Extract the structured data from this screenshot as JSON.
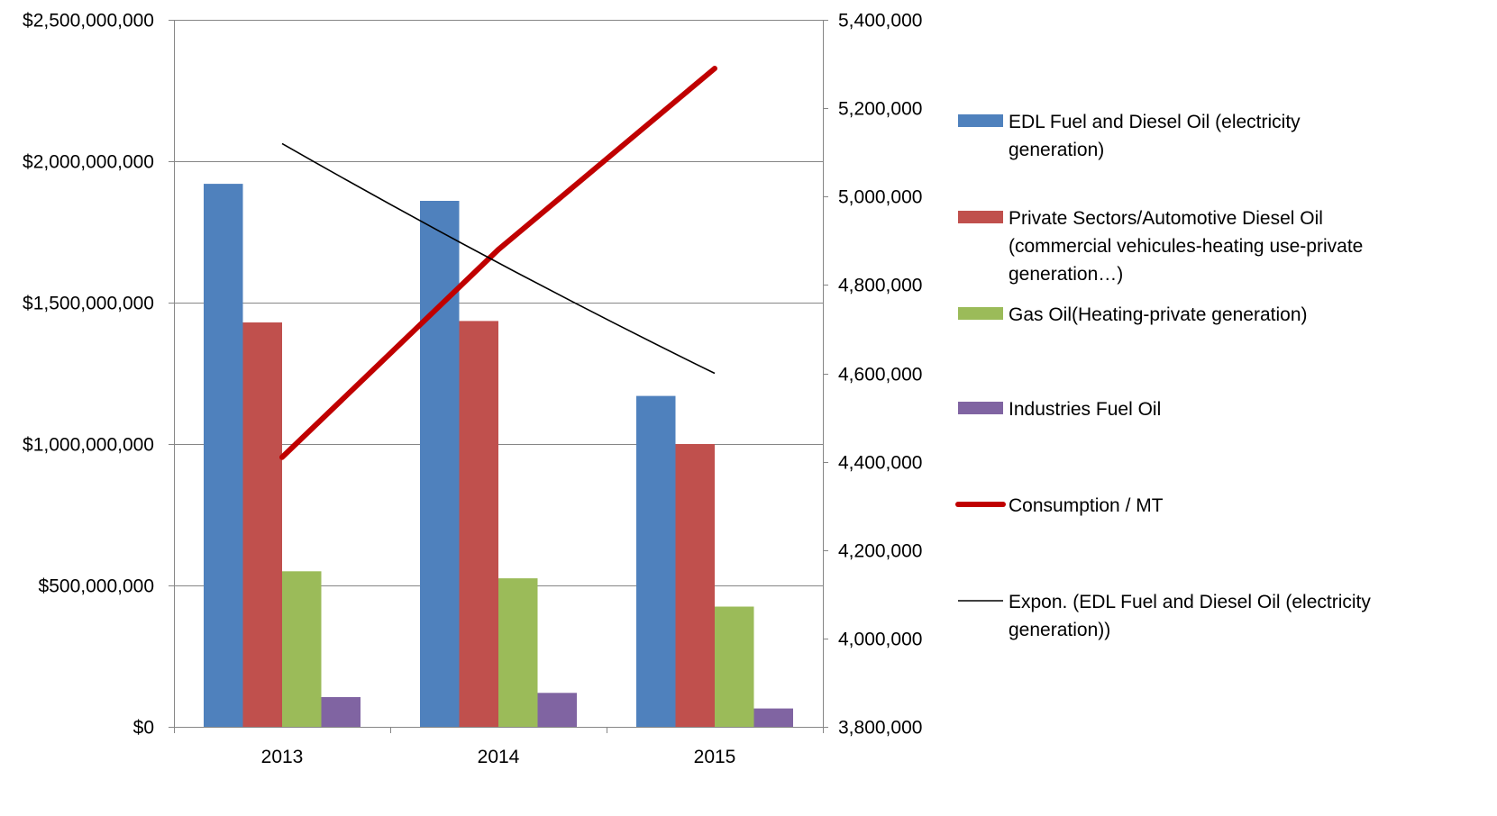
{
  "chart_data": {
    "type": "bar",
    "categories": [
      "2013",
      "2014",
      "2015"
    ],
    "series": [
      {
        "name": "EDL Fuel and Diesel  Oil (electricity generation)",
        "values": [
          1920000000,
          1860000000,
          1170000000
        ],
        "color": "#4F81BD",
        "axis": "left"
      },
      {
        "name": "Private Sectors/Automotive Diesel  Oil (commercial vehicules-heating use-private generation…)",
        "values": [
          1430000000,
          1435000000,
          1000000000
        ],
        "color": "#C0504D",
        "axis": "left"
      },
      {
        "name": "Gas Oil(Heating-private generation)",
        "values": [
          550000000,
          525000000,
          425000000
        ],
        "color": "#9BBB59",
        "axis": "left"
      },
      {
        "name": "Industries  Fuel Oil",
        "values": [
          105000000,
          120000000,
          65000000
        ],
        "color": "#8064A2",
        "axis": "left"
      }
    ],
    "lines": [
      {
        "name": "Consumption / MT",
        "type": "line",
        "values": [
          4410000,
          4880000,
          5290000
        ],
        "color": "#C00000",
        "axis": "right"
      },
      {
        "name": "Expon. (EDL Fuel and Diesel  Oil (electricity generation))",
        "type": "trendline",
        "values": [
          5120000,
          4850000,
          4600000
        ],
        "color": "#000000",
        "axis": "right"
      }
    ],
    "y_left": {
      "ylim": [
        0,
        2500000000
      ],
      "ticks": [
        0,
        500000000,
        1000000000,
        1500000000,
        2000000000,
        2500000000
      ],
      "tick_labels": [
        "$0",
        "$500,000,000",
        "$1,000,000,000",
        "$1,500,000,000",
        "$2,000,000,000",
        "$2,500,000,000"
      ]
    },
    "y_right": {
      "ylim": [
        3800000,
        5400000
      ],
      "ticks": [
        3800000,
        4000000,
        4200000,
        4400000,
        4600000,
        4800000,
        5000000,
        5200000,
        5400000
      ],
      "tick_labels": [
        "3,800,000",
        "4,000,000",
        "4,200,000",
        "4,400,000",
        "4,600,000",
        "4,800,000",
        "5,000,000",
        "5,200,000",
        "5,400,000"
      ]
    },
    "grid": true,
    "legend": "right",
    "legend_entries": [
      {
        "lines": [
          "EDL Fuel and Diesel  Oil (electricity",
          "generation)"
        ],
        "marker": "bar",
        "color": "#4F81BD"
      },
      {
        "lines": [
          "Private Sectors/Automotive Diesel  Oil",
          "(commercial vehicules-heating use-private",
          "generation…)"
        ],
        "marker": "bar",
        "color": "#C0504D"
      },
      {
        "lines": [
          "Gas Oil(Heating-private generation)"
        ],
        "marker": "bar",
        "color": "#9BBB59"
      },
      {
        "lines": [
          "Industries  Fuel Oil"
        ],
        "marker": "bar",
        "color": "#8064A2"
      },
      {
        "lines": [
          "Consumption / MT"
        ],
        "marker": "thick-line",
        "color": "#C00000"
      },
      {
        "lines": [
          "Expon. (EDL Fuel and Diesel  Oil (electricity",
          "generation))"
        ],
        "marker": "thin-line",
        "color": "#000000"
      }
    ]
  }
}
